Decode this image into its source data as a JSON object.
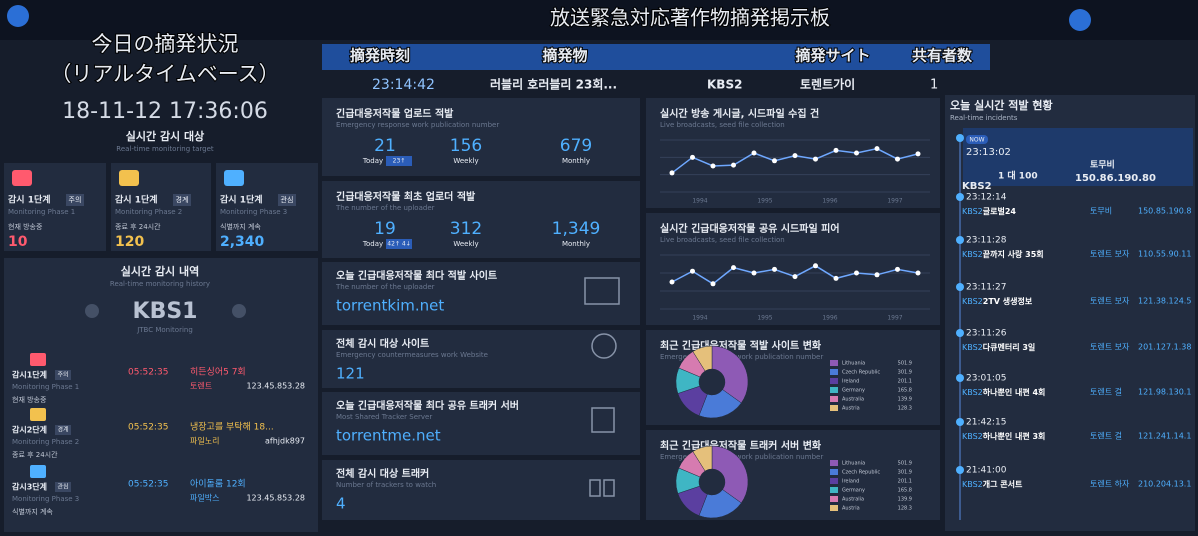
{
  "header": {
    "title": "放送緊急対応著作物摘発掲示板",
    "left_title": "今日の摘発状況",
    "left_subtitle": "（リアルタイムベース）"
  },
  "ticker": {
    "columns": [
      "摘発時刻",
      "摘発物",
      "摘発サイト",
      "共有者数"
    ],
    "row": {
      "time": "23:14:42",
      "item": "러블리 호러블리 23회...",
      "channel": "KBS2",
      "site": "토렌트가이",
      "sharers": "1"
    }
  },
  "monitor": {
    "datetime": "18-11-12 17:36:06",
    "title": "실시간 감시 대상",
    "subtitle": "Real-time monitoring target",
    "cards": [
      {
        "label": "감시 1단계",
        "badge": "주의",
        "sub": "Monitoring Phase 1",
        "status": "현재 방송중",
        "value": "10",
        "color": "#ff5a6e"
      },
      {
        "label": "감시 1단계",
        "badge": "경계",
        "sub": "Monitoring Phase 2",
        "status": "종료 후 24시간",
        "value": "120",
        "color": "#f2c14e"
      },
      {
        "label": "감시 1단계",
        "badge": "관심",
        "sub": "Monitoring Phase 3",
        "status": "식별까지 계속",
        "value": "2,340",
        "color": "#4fb0ff"
      }
    ]
  },
  "history": {
    "title": "실시간 감시 내역",
    "subtitle": "Real-time monitoring history",
    "channel": "KBS1",
    "source": "JTBC Monitoring",
    "rows": [
      {
        "label": "감시1단계",
        "badge": "주의",
        "sub": "Monitoring Phase 1",
        "status": "현재 방송중",
        "time": "05:52:35",
        "title": "히든싱어5 7회",
        "site": "토렌트",
        "id": "123.45.853.28",
        "color": "#ff5a6e"
      },
      {
        "label": "감시2단계",
        "badge": "경계",
        "sub": "Monitoring Phase 2",
        "status": "종료 후 24시간",
        "time": "05:52:35",
        "title": "냉장고를 부탁해 18...",
        "site": "파일노리",
        "id": "afhjdk897",
        "color": "#f2c14e"
      },
      {
        "label": "감시3단계",
        "badge": "관심",
        "sub": "Monitoring Phase 3",
        "status": "식별까지 계속",
        "time": "05:52:35",
        "title": "아이돌룸 12회",
        "site": "파일박스",
        "id": "123.45.853.28",
        "color": "#4fb0ff"
      }
    ]
  },
  "stats": [
    {
      "title": "긴급대응저작물 업로드 적발",
      "subtitle": "Emergency response work publication number",
      "items": [
        {
          "value": "21",
          "label": "Today",
          "badge": "23↑"
        },
        {
          "value": "156",
          "label": "Weekly"
        },
        {
          "value": "679",
          "label": "Monthly"
        }
      ]
    },
    {
      "title": "긴급대응저작물 최초 업로더 적발",
      "subtitle": "The number of the uploader",
      "items": [
        {
          "value": "19",
          "label": "Today",
          "badge": "42↑ 4↓"
        },
        {
          "value": "312",
          "label": "Weekly"
        },
        {
          "value": "1,349",
          "label": "Monthly"
        }
      ]
    }
  ],
  "sites": [
    {
      "title": "오늘 긴급대응저작물 최다 적발 사이트",
      "subtitle": "The number of the uploader",
      "value": "torrentkim.net"
    },
    {
      "title": "전체 감시 대상 사이트",
      "subtitle": "Emergency countermeasures work Website",
      "value": "121"
    },
    {
      "title": "오늘 긴급대응저작물 최다 공유 트래커 서버",
      "subtitle": "Most Shared Tracker Server",
      "value": "torrentme.net"
    },
    {
      "title": "전체 감시 대상 트래커",
      "subtitle": "Number of trackers to watch",
      "value": "4"
    }
  ],
  "charts": [
    {
      "type": "line",
      "title": "실시간 방송 게시글, 시드파일 수집 건",
      "subtitle": "Live broadcasts, seed file collection",
      "values": [
        22,
        40,
        30,
        31,
        45,
        36,
        42,
        38,
        48,
        45,
        50,
        38,
        44
      ],
      "ylim": [
        0,
        60
      ],
      "xlabels": [
        "1994",
        "1995",
        "1996",
        "1997"
      ],
      "color": "#6fa8ff"
    },
    {
      "type": "line",
      "title": "실시간 긴급대응저작물 공유 시드파일 피어",
      "subtitle": "Live broadcasts, seed file collection",
      "values": [
        30,
        42,
        28,
        46,
        40,
        44,
        36,
        48,
        34,
        40,
        38,
        44,
        40
      ],
      "ylim": [
        0,
        60
      ],
      "xlabels": [
        "1994",
        "1995",
        "1996",
        "1997"
      ],
      "color": "#6fa8ff"
    },
    {
      "type": "pie",
      "title": "최근 긴급대응저작물 적발 사이트 변화",
      "subtitle": "Emergency response work publication number",
      "categories": [
        "Lithuania",
        "Czech Republic",
        "Ireland",
        "Germany",
        "Australia",
        "Austria"
      ],
      "values": [
        501.9,
        301.9,
        201.1,
        165.8,
        139.9,
        128.3
      ],
      "colors": [
        "#8e5ab5",
        "#4a7bd8",
        "#5b3fa0",
        "#3fb6c4",
        "#d67bb0",
        "#e5c07b"
      ]
    },
    {
      "type": "pie",
      "title": "최근 긴급대응저작물 트래커 서버 변화",
      "subtitle": "Emergency response work publication number",
      "categories": [
        "Lithuania",
        "Czech Republic",
        "Ireland",
        "Germany",
        "Australia",
        "Austria"
      ],
      "values": [
        501.9,
        301.9,
        201.1,
        165.8,
        139.9,
        128.3
      ],
      "colors": [
        "#8e5ab5",
        "#4a7bd8",
        "#5b3fa0",
        "#3fb6c4",
        "#d67bb0",
        "#e5c07b"
      ]
    }
  ],
  "incidents": {
    "title": "오늘 실시간 적발 현황",
    "subtitle": "Real-time incidents",
    "current": {
      "badge": "NOW",
      "time": "23:13:02",
      "site": "토무비",
      "ratio": "1 대 100",
      "ip": "150.86.190.80",
      "channel": "KBS2"
    },
    "items": [
      {
        "time": "23:12:14",
        "channel": "KBS2",
        "title": "글로벌24",
        "site": "토무비",
        "ip": "150.85.190.8"
      },
      {
        "time": "23:11:28",
        "channel": "KBS2",
        "title": "끝까지 사랑 35회",
        "site": "토렌트 보자",
        "ip": "110.55.90.11"
      },
      {
        "time": "23:11:27",
        "channel": "KBS2",
        "title": "2TV 생생정보",
        "site": "토렌트 보자",
        "ip": "121.38.124.5"
      },
      {
        "time": "23:11:26",
        "channel": "KBS2",
        "title": "다큐멘터리 3일",
        "site": "토렌트 보자",
        "ip": "201.127.1.38"
      },
      {
        "time": "23:01:05",
        "channel": "KBS2",
        "title": "하나뿐인 내편 4회",
        "site": "토렌트 걸",
        "ip": "121.98.130.1"
      },
      {
        "time": "21:42:15",
        "channel": "KBS2",
        "title": "하나뿐인 내편 3회",
        "site": "토렌트 걸",
        "ip": "121.241.14.1"
      },
      {
        "time": "21:41:00",
        "channel": "KBS2",
        "title": "개그 콘서트",
        "site": "토렌트 하자",
        "ip": "210.204.13.1"
      }
    ]
  }
}
